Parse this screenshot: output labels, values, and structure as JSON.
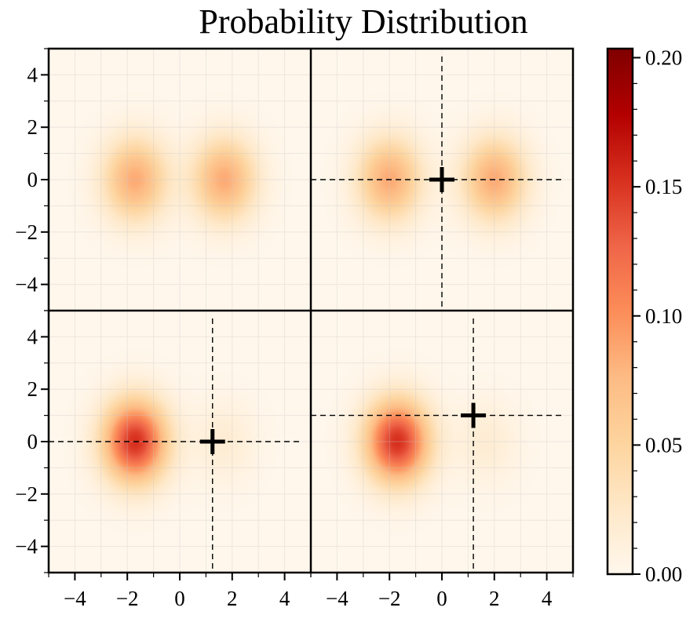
{
  "title": "Probability Distribution",
  "colormap": {
    "name": "OrRd",
    "stops": [
      "#fff7ec",
      "#fee8c8",
      "#fdd49e",
      "#fdbb84",
      "#fc8d59",
      "#ef6548",
      "#d7301f",
      "#b30000",
      "#7f0000"
    ]
  },
  "chart_data": {
    "type": "heatmap",
    "title": "Probability Distribution",
    "xlim": [
      -5,
      5
    ],
    "ylim": [
      -5,
      5
    ],
    "xticks": [
      -4,
      -2,
      0,
      2,
      4
    ],
    "yticks": [
      -4,
      -2,
      0,
      2,
      4
    ],
    "xtick_labels": [
      "−4",
      "−2",
      "0",
      "2",
      "4"
    ],
    "ytick_labels": [
      "4",
      "2",
      "0",
      "−2",
      "−4"
    ],
    "grid": true,
    "colorbar": {
      "vmin": 0.0,
      "vmax": 0.2035,
      "ticks": [
        0.0,
        0.05,
        0.1,
        0.15,
        0.2
      ],
      "tick_labels": [
        "0.00",
        "0.05",
        "0.10",
        "0.15",
        "0.20"
      ]
    },
    "panels": [
      {
        "position": "top-left",
        "components": [
          {
            "mean": [
              -1.7,
              0.0
            ],
            "sigma": [
              0.85,
              1.1
            ],
            "weight": 0.5
          },
          {
            "mean": [
              1.7,
              0.0
            ],
            "sigma": [
              0.85,
              1.1
            ],
            "weight": 0.5
          }
        ],
        "marker": null
      },
      {
        "position": "top-right",
        "components": [
          {
            "mean": [
              -2.0,
              0.0
            ],
            "sigma": [
              0.85,
              1.1
            ],
            "weight": 0.5
          },
          {
            "mean": [
              2.0,
              0.0
            ],
            "sigma": [
              0.85,
              1.1
            ],
            "weight": 0.5
          }
        ],
        "marker": {
          "x": 0.0,
          "y": 0.0
        }
      },
      {
        "position": "bottom-left",
        "components": [
          {
            "mean": [
              -1.7,
              0.0
            ],
            "sigma": [
              0.85,
              1.1
            ],
            "weight": 0.9
          },
          {
            "mean": [
              1.7,
              0.0
            ],
            "sigma": [
              0.85,
              1.1
            ],
            "weight": 0.1
          }
        ],
        "marker": {
          "x": 1.25,
          "y": 0.0
        }
      },
      {
        "position": "bottom-right",
        "components": [
          {
            "mean": [
              -1.7,
              0.0
            ],
            "sigma": [
              0.85,
              1.1
            ],
            "weight": 0.9
          },
          {
            "mean": [
              1.7,
              0.0
            ],
            "sigma": [
              0.85,
              1.1
            ],
            "weight": 0.1
          }
        ],
        "marker": {
          "x": 1.2,
          "y": 1.0
        }
      }
    ]
  }
}
